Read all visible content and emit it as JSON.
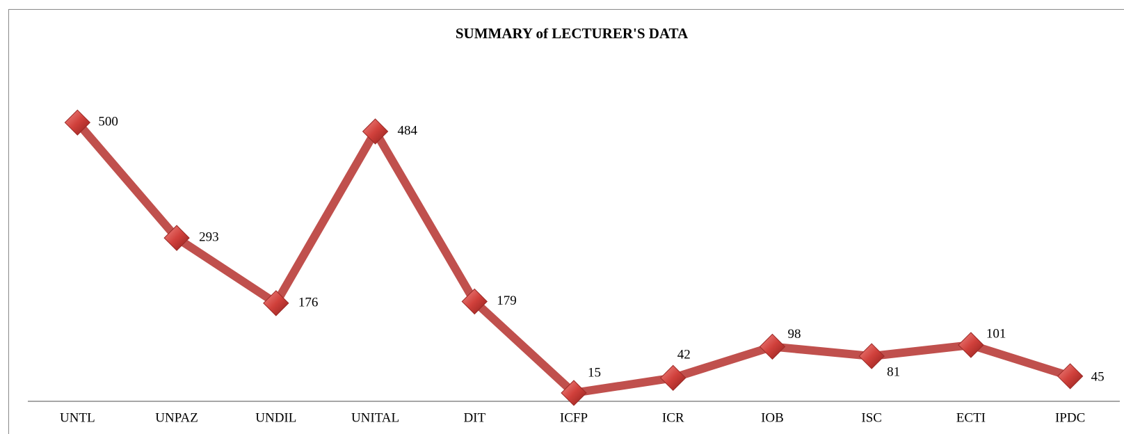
{
  "chart_data": {
    "type": "line",
    "title": "SUMMARY of  LECTURER'S DATA",
    "categories": [
      "UNTL",
      "UNPAZ",
      "UNDIL",
      "UNITAL",
      "DIT",
      "ICFP",
      "ICR",
      "IOB",
      "ISC",
      "ECTI",
      "IPDC"
    ],
    "values": [
      500,
      293,
      176,
      484,
      179,
      15,
      42,
      98,
      81,
      101,
      45
    ],
    "color": "#c0504d",
    "ylim": [
      0,
      600
    ],
    "grid": false
  }
}
